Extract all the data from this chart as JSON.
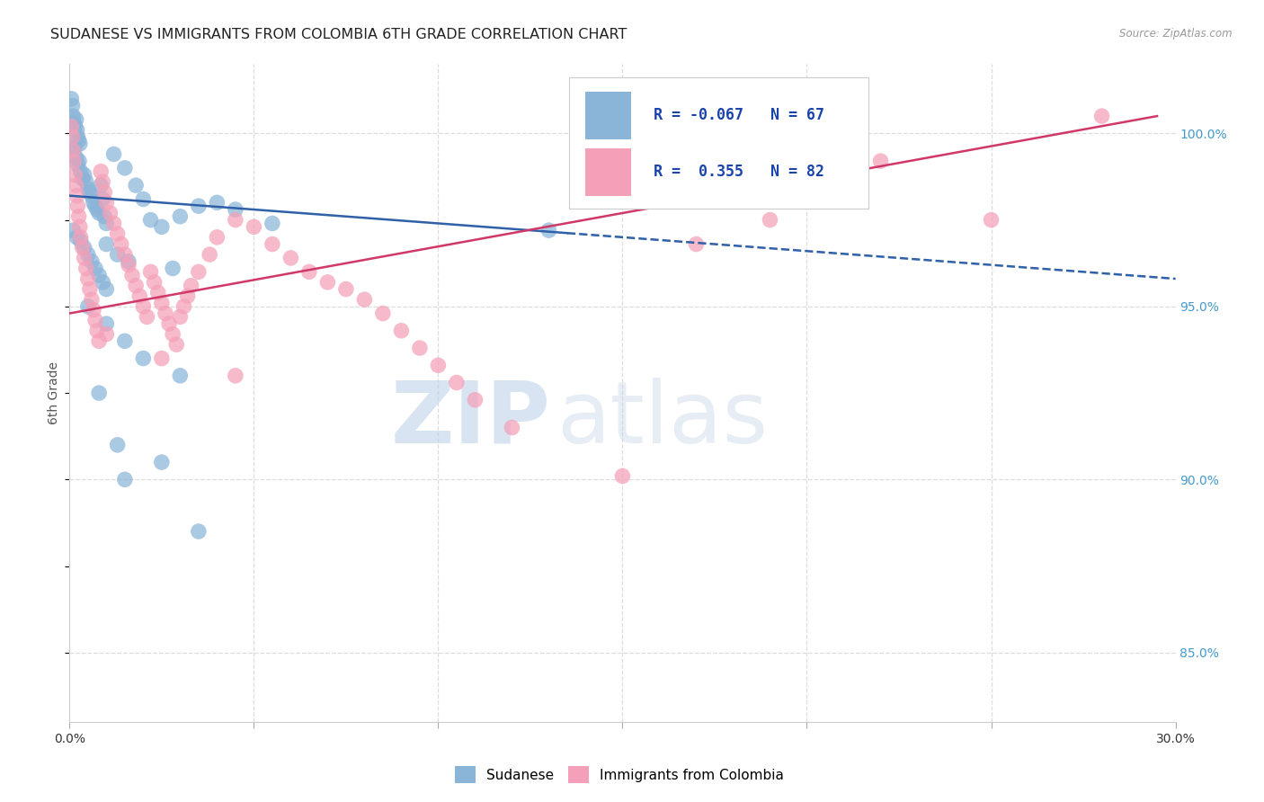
{
  "title": "SUDANESE VS IMMIGRANTS FROM COLOMBIA 6TH GRADE CORRELATION CHART",
  "source": "Source: ZipAtlas.com",
  "ylabel": "6th Grade",
  "right_yticks": [
    85.0,
    90.0,
    95.0,
    100.0
  ],
  "xlim": [
    0.0,
    30.0
  ],
  "ylim": [
    83.0,
    102.0
  ],
  "blue_R": "-0.067",
  "blue_N": "67",
  "pink_R": "0.355",
  "pink_N": "82",
  "blue_color": "#8ab4d8",
  "pink_color": "#f4a0b8",
  "blue_line_color": "#3060a8",
  "pink_line_color": "#d03868",
  "blue_scatter_x": [
    0.05,
    0.08,
    0.1,
    0.12,
    0.15,
    0.18,
    0.2,
    0.22,
    0.25,
    0.28,
    0.1,
    0.14,
    0.18,
    0.22,
    0.26,
    0.3,
    0.35,
    0.4,
    0.45,
    0.5,
    0.55,
    0.6,
    0.65,
    0.7,
    0.75,
    0.8,
    0.85,
    0.9,
    0.95,
    1.0,
    0.1,
    0.2,
    0.3,
    0.4,
    0.5,
    0.6,
    0.7,
    0.8,
    0.9,
    1.0,
    1.2,
    1.5,
    1.8,
    2.0,
    2.2,
    2.5,
    3.0,
    3.5,
    4.0,
    4.5,
    1.0,
    1.3,
    1.6,
    2.8,
    5.5,
    0.5,
    1.0,
    1.5,
    2.0,
    3.0,
    0.8,
    1.3,
    2.5,
    1.5,
    3.5,
    13.0
  ],
  "blue_scatter_y": [
    101.0,
    100.8,
    100.5,
    100.3,
    100.2,
    100.4,
    100.1,
    99.9,
    99.8,
    99.7,
    99.5,
    99.6,
    99.3,
    99.1,
    99.2,
    98.9,
    98.7,
    98.8,
    98.6,
    98.4,
    98.3,
    98.2,
    98.0,
    97.9,
    97.8,
    97.7,
    98.5,
    98.1,
    97.6,
    97.4,
    97.2,
    97.0,
    96.9,
    96.7,
    96.5,
    96.3,
    96.1,
    95.9,
    95.7,
    95.5,
    99.4,
    99.0,
    98.5,
    98.1,
    97.5,
    97.3,
    97.6,
    97.9,
    98.0,
    97.8,
    96.8,
    96.5,
    96.3,
    96.1,
    97.4,
    95.0,
    94.5,
    94.0,
    93.5,
    93.0,
    92.5,
    91.0,
    90.5,
    90.0,
    88.5,
    97.2
  ],
  "pink_scatter_x": [
    0.05,
    0.08,
    0.1,
    0.12,
    0.15,
    0.18,
    0.2,
    0.22,
    0.25,
    0.28,
    0.3,
    0.35,
    0.4,
    0.45,
    0.5,
    0.55,
    0.6,
    0.65,
    0.7,
    0.75,
    0.8,
    0.85,
    0.9,
    0.95,
    1.0,
    1.1,
    1.2,
    1.3,
    1.4,
    1.5,
    1.6,
    1.7,
    1.8,
    1.9,
    2.0,
    2.1,
    2.2,
    2.3,
    2.4,
    2.5,
    2.6,
    2.7,
    2.8,
    2.9,
    3.0,
    3.1,
    3.2,
    3.3,
    3.5,
    3.8,
    4.0,
    4.5,
    5.0,
    5.5,
    6.0,
    6.5,
    7.0,
    7.5,
    8.0,
    8.5,
    9.0,
    9.5,
    10.0,
    10.5,
    11.0,
    12.0,
    1.0,
    2.5,
    4.5,
    20.0,
    22.0,
    25.0,
    28.0,
    15.0,
    17.0,
    19.0
  ],
  "pink_scatter_y": [
    100.2,
    99.9,
    99.5,
    99.2,
    98.8,
    98.5,
    98.2,
    97.9,
    97.6,
    97.3,
    97.0,
    96.7,
    96.4,
    96.1,
    95.8,
    95.5,
    95.2,
    94.9,
    94.6,
    94.3,
    94.0,
    98.9,
    98.6,
    98.3,
    98.0,
    97.7,
    97.4,
    97.1,
    96.8,
    96.5,
    96.2,
    95.9,
    95.6,
    95.3,
    95.0,
    94.7,
    96.0,
    95.7,
    95.4,
    95.1,
    94.8,
    94.5,
    94.2,
    93.9,
    94.7,
    95.0,
    95.3,
    95.6,
    96.0,
    96.5,
    97.0,
    97.5,
    97.3,
    96.8,
    96.4,
    96.0,
    95.7,
    95.5,
    95.2,
    94.8,
    94.3,
    93.8,
    93.3,
    92.8,
    92.3,
    91.5,
    94.2,
    93.5,
    93.0,
    99.5,
    99.2,
    97.5,
    100.5,
    90.1,
    96.8,
    97.5
  ],
  "blue_trend_x0": 0.0,
  "blue_trend_x1": 30.0,
  "blue_trend_y0": 98.2,
  "blue_trend_y1": 95.8,
  "blue_solid_end_x": 13.5,
  "pink_trend_x0": 0.0,
  "pink_trend_x1": 29.5,
  "pink_trend_y0": 94.8,
  "pink_trend_y1": 100.5,
  "grid_color": "#dddddd",
  "background_color": "#ffffff",
  "title_fontsize": 11.5,
  "watermark_zip": "ZIP",
  "watermark_atlas": "atlas"
}
